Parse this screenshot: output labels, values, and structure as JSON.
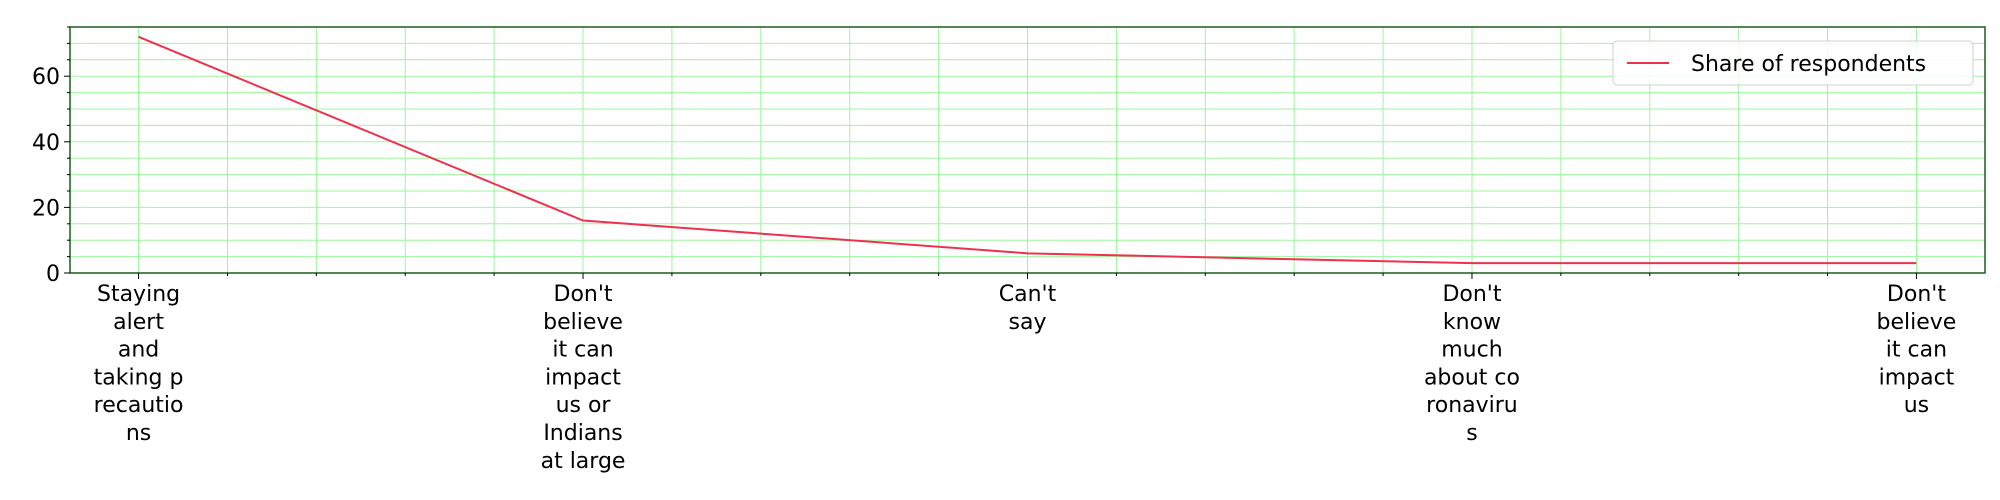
{
  "chart_data": {
    "type": "line",
    "title": "",
    "xlabel": "",
    "ylabel": "",
    "categories": [
      [
        "Staying",
        "alert",
        "and",
        "taking p",
        "recautio",
        "ns"
      ],
      [
        "Don't",
        "believe",
        "it can",
        "impact",
        "us or",
        "Indians",
        "at large"
      ],
      [
        "Can't",
        "say"
      ],
      [
        "Don't",
        "know",
        "much",
        "about co",
        "ronaviru",
        "s"
      ],
      [
        "Don't",
        "believe",
        "it can",
        "impact",
        "us"
      ]
    ],
    "series": [
      {
        "name": "Share of respondents",
        "values": [
          72,
          16,
          6,
          3,
          3
        ],
        "color": "#f0304e"
      }
    ],
    "ylim": [
      0,
      75
    ],
    "yticks": [
      0,
      20,
      40,
      60
    ],
    "grid": true,
    "grid_color": "#9ef59e",
    "spine_color": "#1a5e1a",
    "legend_position": "top-right"
  }
}
